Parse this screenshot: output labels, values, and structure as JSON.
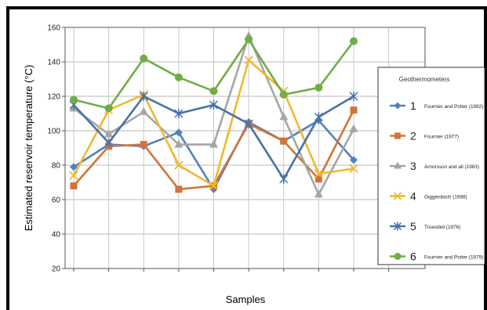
{
  "chart_data": {
    "type": "line",
    "title": "",
    "xlabel": "Samples",
    "ylabel": "Estimated reservoir temperature (°C)",
    "ylim": [
      20,
      160
    ],
    "yticks": [
      20,
      40,
      60,
      80,
      100,
      120,
      140,
      160
    ],
    "grid": true,
    "legend_title": "Geothermometers",
    "legend_position": "right",
    "x": [
      1,
      2,
      3,
      4,
      5,
      6,
      7,
      8,
      9
    ],
    "series": [
      {
        "number": "1",
        "name": "Fournier and Potter (1982)",
        "color": "#4f81bd",
        "marker": "diamond",
        "values": [
          79,
          92,
          91,
          99,
          66,
          105,
          94,
          106,
          83
        ]
      },
      {
        "number": "2",
        "name": "Fournier (1977)",
        "color": "#d2743a",
        "marker": "square",
        "values": [
          68,
          91,
          92,
          66,
          68,
          104,
          94,
          72,
          112
        ]
      },
      {
        "number": "3",
        "name": "Arnorsson and all (1983)",
        "color": "#a5a5a5",
        "marker": "triangle",
        "values": [
          113,
          98,
          111,
          92,
          92,
          155,
          108,
          63,
          101
        ]
      },
      {
        "number": "4",
        "name": "Giggenbach (1988)",
        "color": "#f0b82f",
        "marker": "x",
        "values": [
          74,
          112,
          121,
          80,
          68,
          141,
          123,
          75,
          78
        ]
      },
      {
        "number": "5",
        "name": "Truesdell (1976)",
        "color": "#4572a7",
        "marker": "star",
        "values": [
          115,
          93,
          120,
          110,
          115,
          104,
          72,
          108,
          120
        ]
      },
      {
        "number": "6",
        "name": "Fournier and Potter (1979)",
        "color": "#70ad47",
        "marker": "circle",
        "values": [
          118,
          113,
          142,
          131,
          123,
          153,
          121,
          125,
          152
        ]
      }
    ]
  }
}
